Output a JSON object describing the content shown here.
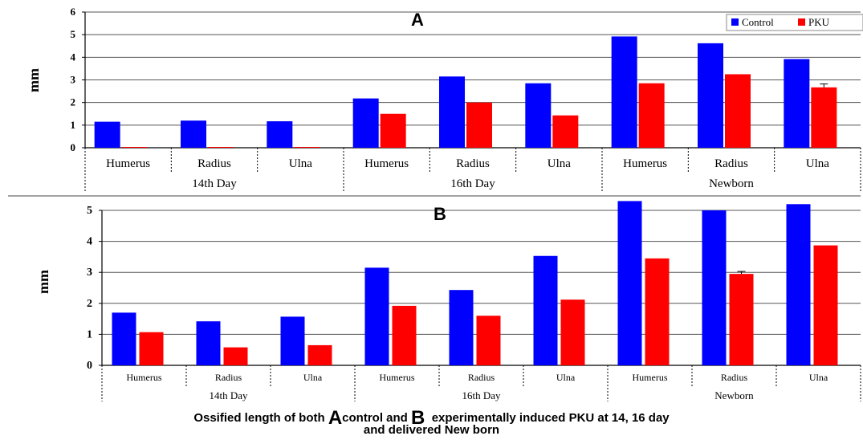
{
  "chart_data": [
    {
      "type": "bar",
      "title": "A",
      "ylabel": "mm",
      "ylim": [
        0,
        6
      ],
      "yticks": [
        0,
        1,
        2,
        3,
        4,
        5,
        6
      ],
      "grid": true,
      "legend": "top-right",
      "categories": [
        "Humerus",
        "Radius",
        "Ulna",
        "Humerus",
        "Radius",
        "Ulna",
        "Humerus",
        "Radius",
        "Ulna"
      ],
      "groups": [
        "14th Day",
        "16th Day",
        "Newborn"
      ],
      "series": [
        {
          "name": "Control",
          "color": "#0000ff",
          "values": [
            1.15,
            1.2,
            1.17,
            2.18,
            3.15,
            2.85,
            4.92,
            4.62,
            3.92
          ]
        },
        {
          "name": "PKU",
          "color": "#ff0000",
          "values": [
            0.02,
            0.02,
            0.02,
            1.5,
            2.0,
            1.43,
            2.85,
            3.25,
            2.67
          ]
        }
      ]
    },
    {
      "type": "bar",
      "title": "B",
      "ylabel": "mm",
      "ylim": [
        0,
        5
      ],
      "yticks": [
        0,
        1,
        2,
        3,
        4,
        5
      ],
      "grid": true,
      "legend": "none",
      "categories": [
        "Humerus",
        "Radius",
        "Ulna",
        "Humerus",
        "Radius",
        "Ulna",
        "Humerus",
        "Radius",
        "Ulna"
      ],
      "groups": [
        "14th Day",
        "16th Day",
        "Newborn"
      ],
      "series": [
        {
          "color": "#0000ff",
          "values": [
            1.7,
            1.42,
            1.57,
            3.15,
            2.43,
            3.53,
            5.3,
            5.0,
            5.2
          ]
        },
        {
          "color": "#ff0000",
          "values": [
            1.07,
            0.58,
            0.65,
            1.92,
            1.6,
            2.12,
            3.45,
            2.95,
            3.87
          ]
        }
      ]
    }
  ],
  "caption": {
    "prefix": "Ossified length of both ",
    "letter_a": "A",
    "middle": "control and ",
    "letter_b": "B",
    "suffix": "  experimentally induced PKU at 14, 16 day",
    "line2": "and delivered New born"
  }
}
